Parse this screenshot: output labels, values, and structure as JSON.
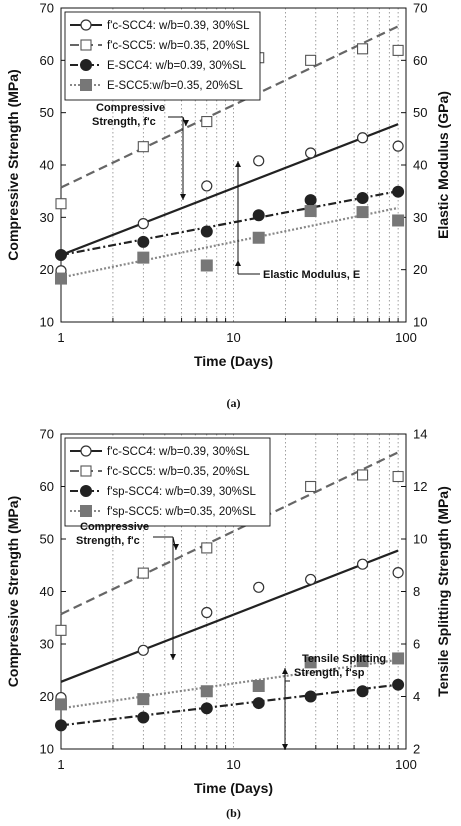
{
  "chart_data": [
    {
      "panel_label": "(a)",
      "type": "scatter",
      "x_scale": "log",
      "xlim": [
        1,
        100
      ],
      "ylim": [
        10,
        70
      ],
      "y2lim": [
        10,
        70
      ],
      "xticks": [
        "1",
        "10",
        "100"
      ],
      "yticks": [
        "10",
        "20",
        "30",
        "40",
        "50",
        "60",
        "70"
      ],
      "y2ticks": [
        "10",
        "20",
        "30",
        "40",
        "50",
        "60",
        "70"
      ],
      "xlabel": "Time (Days)",
      "ylabel": "Compressive Strength (MPa)",
      "y2label": "Elastic Modulus (GPa)",
      "grid": "vertical dotted (log decades)",
      "legend_position": "top-left",
      "series": [
        {
          "name": "f'c-SCC4: w/b=0.39, 30%SL",
          "axis": "left",
          "marker": "circle-open",
          "line": "solid",
          "color": "#222222",
          "x": [
            1,
            3,
            7,
            14,
            28,
            56,
            90
          ],
          "y": [
            19.8,
            28.8,
            36.0,
            40.8,
            42.3,
            45.2,
            43.6
          ],
          "fit": [
            22.8,
            47.8
          ]
        },
        {
          "name": "f'c-SCC5: w/b=0.35, 20%SL",
          "axis": "left",
          "marker": "square-open",
          "line": "dashed",
          "color": "#666666",
          "x": [
            1,
            3,
            7,
            14,
            28,
            56,
            90
          ],
          "y": [
            32.6,
            43.5,
            48.3,
            60.5,
            60.0,
            62.2,
            61.9
          ],
          "fit": [
            35.7,
            66.5
          ]
        },
        {
          "name": "E-SCC4: w/b=0.39, 30%SL",
          "axis": "right",
          "marker": "circle-filled",
          "line": "dash-dot",
          "color": "#222222",
          "x": [
            1,
            3,
            7,
            14,
            28,
            56,
            90
          ],
          "y": [
            22.8,
            25.3,
            27.3,
            30.4,
            33.3,
            33.7,
            34.9
          ],
          "fit": [
            22.8,
            35.0
          ]
        },
        {
          "name": "E-SCC5:w/b=0.35, 20%SL",
          "axis": "right",
          "marker": "square-filled",
          "line": "dotted",
          "color": "#888888",
          "x": [
            1,
            3,
            7,
            14,
            28,
            56,
            90
          ],
          "y": [
            18.3,
            22.3,
            20.8,
            26.1,
            31.2,
            31.0,
            29.4
          ],
          "fit": [
            18.5,
            31.8
          ]
        }
      ],
      "annotations": [
        {
          "text": [
            "Compressive",
            "Strength, f'c"
          ]
        },
        {
          "text": [
            "Elastic Modulus, E"
          ]
        }
      ]
    },
    {
      "panel_label": "(b)",
      "type": "scatter",
      "x_scale": "log",
      "xlim": [
        1,
        100
      ],
      "ylim": [
        10,
        70
      ],
      "y2lim": [
        2,
        14
      ],
      "xticks": [
        "1",
        "10",
        "100"
      ],
      "yticks": [
        "10",
        "20",
        "30",
        "40",
        "50",
        "60",
        "70"
      ],
      "y2ticks": [
        "2",
        "4",
        "6",
        "8",
        "10",
        "12",
        "14"
      ],
      "xlabel": "Time (Days)",
      "ylabel": "Compressive Strength (MPa)",
      "y2label": "Tensile Splitting Strength (MPa)",
      "grid": "vertical dotted (log decades)",
      "legend_position": "top-left",
      "series": [
        {
          "name": "f'c-SCC4: w/b=0.39, 30%SL",
          "axis": "left",
          "marker": "circle-open",
          "line": "solid",
          "color": "#222222",
          "x": [
            1,
            3,
            7,
            14,
            28,
            56,
            90
          ],
          "y": [
            19.8,
            28.8,
            36.0,
            40.8,
            42.3,
            45.2,
            43.6
          ],
          "fit": [
            22.8,
            47.8
          ]
        },
        {
          "name": "f'c-SCC5: w/b=0.35, 20%SL",
          "axis": "left",
          "marker": "square-open",
          "line": "dashed",
          "color": "#666666",
          "x": [
            1,
            3,
            7,
            14,
            28,
            56,
            90
          ],
          "y": [
            32.6,
            43.5,
            48.3,
            60.5,
            60.0,
            62.2,
            61.9
          ],
          "fit": [
            35.7,
            66.5
          ]
        },
        {
          "name": "f'sp-SCC4: w/b=0.39, 30%SL",
          "axis": "right",
          "marker": "circle-filled",
          "line": "dash-dot",
          "color": "#222222",
          "x": [
            1,
            3,
            7,
            14,
            28,
            56,
            90
          ],
          "y": [
            2.9,
            3.2,
            3.55,
            3.75,
            4.0,
            4.2,
            4.45
          ],
          "fit": [
            2.9,
            4.45
          ]
        },
        {
          "name": "f'sp-SCC5: w/b=0.35, 20%SL",
          "axis": "right",
          "marker": "square-filled",
          "line": "dotted",
          "color": "#888888",
          "x": [
            1,
            3,
            7,
            14,
            28,
            56,
            90
          ],
          "y": [
            3.7,
            3.9,
            4.2,
            4.4,
            5.3,
            5.35,
            5.45
          ],
          "fit": [
            3.55,
            5.4
          ]
        }
      ],
      "annotations": [
        {
          "text": [
            "Compressive",
            "Strength, f'c"
          ]
        },
        {
          "text": [
            "Tensile Splitting",
            "Strength, f'sp"
          ]
        }
      ]
    }
  ]
}
